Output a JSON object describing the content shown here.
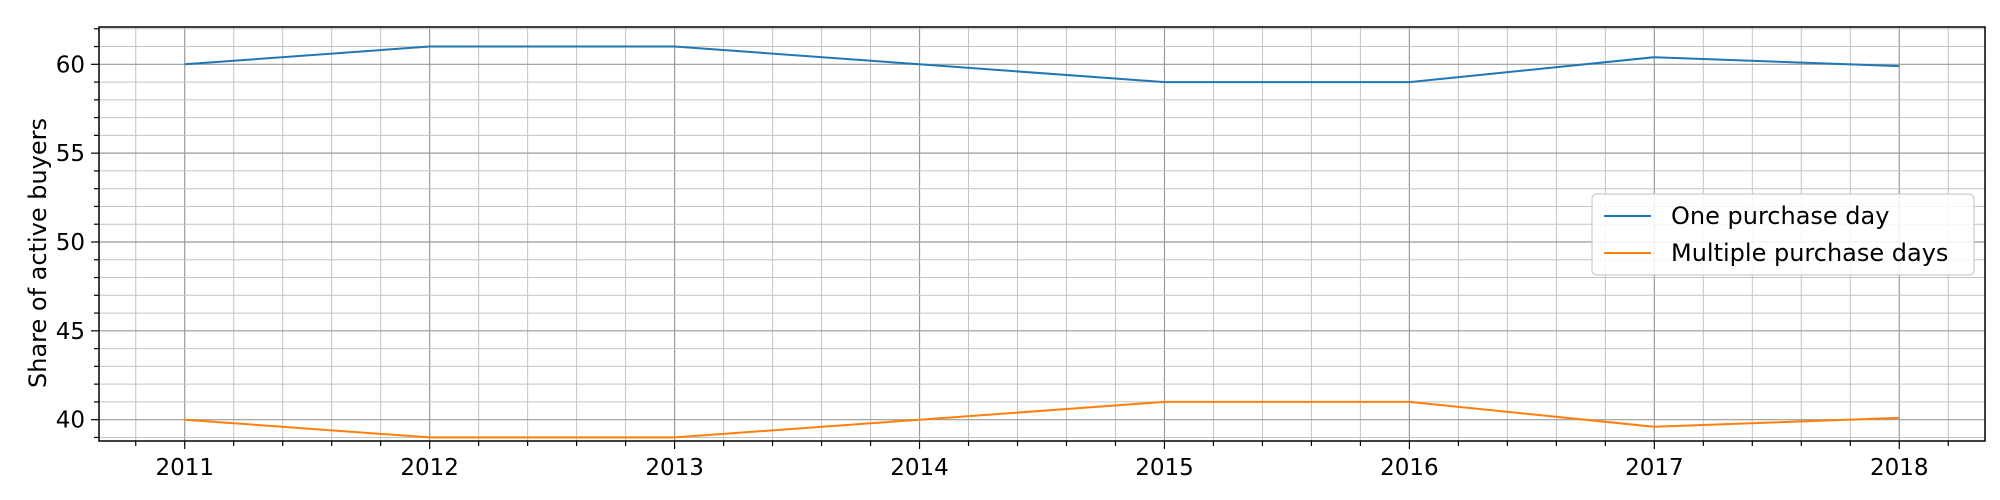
{
  "chart_data": {
    "type": "line",
    "title": "",
    "xlabel": "",
    "ylabel": "Share of active buyers",
    "x": [
      2011,
      2012,
      2013,
      2014,
      2015,
      2016,
      2017,
      2018
    ],
    "x_tick_labels": [
      "2011",
      "2012",
      "2013",
      "2014",
      "2015",
      "2016",
      "2017",
      "2018"
    ],
    "y_ticks": [
      40,
      45,
      50,
      55,
      60
    ],
    "y_tick_labels": [
      "40",
      "45",
      "50",
      "55",
      "60"
    ],
    "xlim": [
      2010.65,
      2018.35
    ],
    "ylim": [
      38.8,
      62.1
    ],
    "grid": "major and minor",
    "legend_position": "center-right",
    "series": [
      {
        "name": "One purchase day",
        "color": "#1f77b4",
        "values": [
          60.0,
          61.0,
          61.0,
          60.0,
          59.0,
          59.0,
          60.4,
          59.9
        ]
      },
      {
        "name": "Multiple purchase days",
        "color": "#ff7f0e",
        "values": [
          40.0,
          39.0,
          39.0,
          40.0,
          41.0,
          41.0,
          39.6,
          40.1
        ]
      }
    ]
  }
}
